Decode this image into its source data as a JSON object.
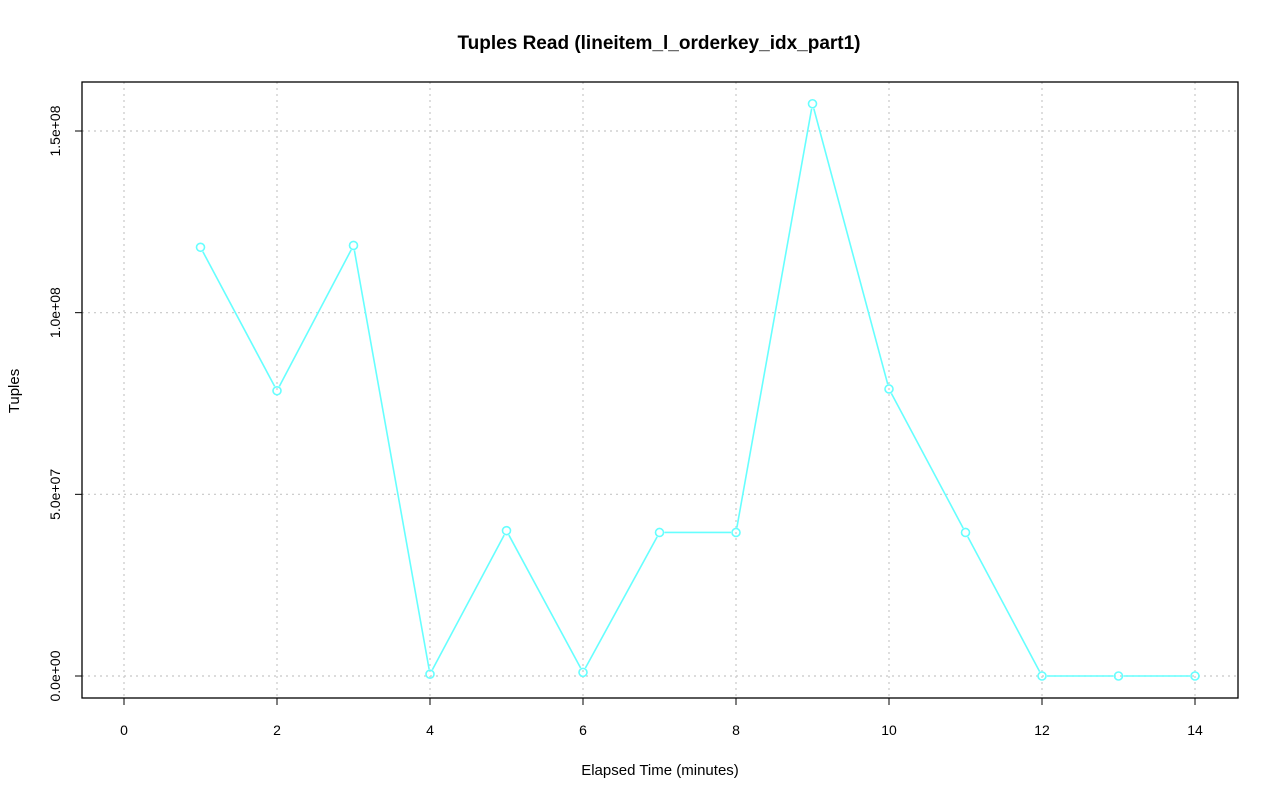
{
  "chart_data": {
    "type": "line",
    "title": "Tuples Read (lineitem_l_orderkey_idx_part1)",
    "xlabel": "Elapsed Time (minutes)",
    "ylabel": "Tuples",
    "xlim": [
      0,
      14
    ],
    "ylim": [
      0,
      160000000
    ],
    "x_ticks": [
      0,
      2,
      4,
      6,
      8,
      10,
      12,
      14
    ],
    "x_tick_labels": [
      "0",
      "2",
      "4",
      "6",
      "8",
      "10",
      "12",
      "14"
    ],
    "y_ticks": [
      0,
      50000000,
      100000000,
      150000000
    ],
    "y_tick_labels": [
      "0.0e+00",
      "5.0e+07",
      "1.0e+08",
      "1.5e+08"
    ],
    "grid": true,
    "series": [
      {
        "color": "#66ffff",
        "marker": "open-circle",
        "x": [
          1,
          2,
          3,
          4,
          5,
          6,
          7,
          8,
          9,
          10,
          11,
          12,
          13,
          14
        ],
        "values": [
          118000000,
          78500000,
          118500000,
          500000,
          40000000,
          1000000,
          39500000,
          39500000,
          157500000,
          79000000,
          39500000,
          0,
          0,
          0
        ]
      }
    ]
  }
}
